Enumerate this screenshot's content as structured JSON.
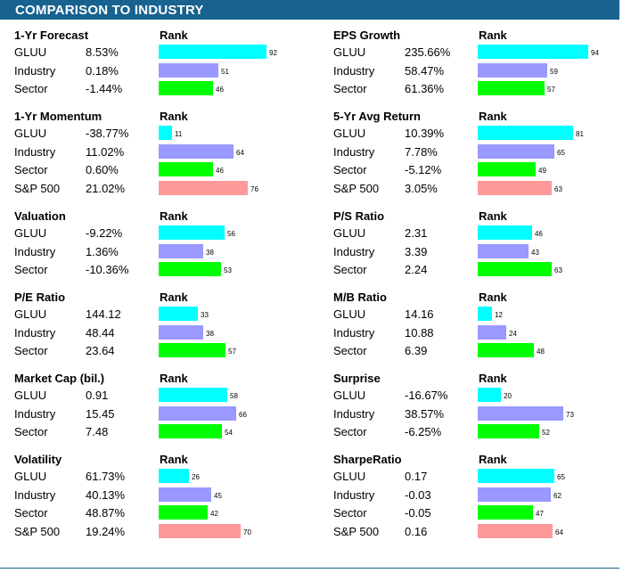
{
  "header": {
    "title": "COMPARISON TO INDUSTRY"
  },
  "rank_label": "Rank",
  "colors": {
    "stock": "#00ffff",
    "industry": "#9999ff",
    "sector": "#00ff00",
    "sp500": "#ff9999",
    "header": "#17628f"
  },
  "sections": [
    {
      "title": "1-Yr Forecast",
      "rows": [
        {
          "label": "GLUU",
          "value": "8.53%",
          "rank": 92,
          "kind": "stock"
        },
        {
          "label": "Industry",
          "value": "0.18%",
          "rank": 51,
          "kind": "industry"
        },
        {
          "label": "Sector",
          "value": "-1.44%",
          "rank": 46,
          "kind": "sector"
        }
      ]
    },
    {
      "title": "EPS Growth",
      "rows": [
        {
          "label": "GLUU",
          "value": "235.66%",
          "rank": 94,
          "kind": "stock"
        },
        {
          "label": "Industry",
          "value": "58.47%",
          "rank": 59,
          "kind": "industry"
        },
        {
          "label": "Sector",
          "value": "61.36%",
          "rank": 57,
          "kind": "sector"
        }
      ]
    },
    {
      "title": "1-Yr Momentum",
      "rows": [
        {
          "label": "GLUU",
          "value": "-38.77%",
          "rank": 11,
          "kind": "stock"
        },
        {
          "label": "Industry",
          "value": "11.02%",
          "rank": 64,
          "kind": "industry"
        },
        {
          "label": "Sector",
          "value": "0.60%",
          "rank": 46,
          "kind": "sector"
        },
        {
          "label": "S&P 500",
          "value": "21.02%",
          "rank": 76,
          "kind": "sp500"
        }
      ]
    },
    {
      "title": "5-Yr Avg Return",
      "rows": [
        {
          "label": "GLUU",
          "value": "10.39%",
          "rank": 81,
          "kind": "stock"
        },
        {
          "label": "Industry",
          "value": "7.78%",
          "rank": 65,
          "kind": "industry"
        },
        {
          "label": "Sector",
          "value": "-5.12%",
          "rank": 49,
          "kind": "sector"
        },
        {
          "label": "S&P 500",
          "value": "3.05%",
          "rank": 63,
          "kind": "sp500"
        }
      ]
    },
    {
      "title": "Valuation",
      "rows": [
        {
          "label": "GLUU",
          "value": "-9.22%",
          "rank": 56,
          "kind": "stock"
        },
        {
          "label": "Industry",
          "value": "1.36%",
          "rank": 38,
          "kind": "industry"
        },
        {
          "label": "Sector",
          "value": "-10.36%",
          "rank": 53,
          "kind": "sector"
        }
      ]
    },
    {
      "title": "P/S Ratio",
      "rows": [
        {
          "label": "GLUU",
          "value": "2.31",
          "rank": 46,
          "kind": "stock"
        },
        {
          "label": "Industry",
          "value": "3.39",
          "rank": 43,
          "kind": "industry"
        },
        {
          "label": "Sector",
          "value": "2.24",
          "rank": 63,
          "kind": "sector"
        }
      ]
    },
    {
      "title": "P/E Ratio",
      "rows": [
        {
          "label": "GLUU",
          "value": "144.12",
          "rank": 33,
          "kind": "stock"
        },
        {
          "label": "Industry",
          "value": "48.44",
          "rank": 38,
          "kind": "industry"
        },
        {
          "label": "Sector",
          "value": "23.64",
          "rank": 57,
          "kind": "sector"
        }
      ]
    },
    {
      "title": "M/B Ratio",
      "rows": [
        {
          "label": "GLUU",
          "value": "14.16",
          "rank": 12,
          "kind": "stock"
        },
        {
          "label": "Industry",
          "value": "10.88",
          "rank": 24,
          "kind": "industry"
        },
        {
          "label": "Sector",
          "value": "6.39",
          "rank": 48,
          "kind": "sector"
        }
      ]
    },
    {
      "title": "Market Cap (bil.)",
      "rows": [
        {
          "label": "GLUU",
          "value": "0.91",
          "rank": 58,
          "kind": "stock"
        },
        {
          "label": "Industry",
          "value": "15.45",
          "rank": 66,
          "kind": "industry"
        },
        {
          "label": "Sector",
          "value": "7.48",
          "rank": 54,
          "kind": "sector"
        }
      ]
    },
    {
      "title": "Surprise",
      "rows": [
        {
          "label": "GLUU",
          "value": "-16.67%",
          "rank": 20,
          "kind": "stock"
        },
        {
          "label": "Industry",
          "value": "38.57%",
          "rank": 73,
          "kind": "industry"
        },
        {
          "label": "Sector",
          "value": "-6.25%",
          "rank": 52,
          "kind": "sector"
        }
      ]
    },
    {
      "title": "Volatility",
      "rows": [
        {
          "label": "GLUU",
          "value": "61.73%",
          "rank": 26,
          "kind": "stock"
        },
        {
          "label": "Industry",
          "value": "40.13%",
          "rank": 45,
          "kind": "industry"
        },
        {
          "label": "Sector",
          "value": "48.87%",
          "rank": 42,
          "kind": "sector"
        },
        {
          "label": "S&P 500",
          "value": "19.24%",
          "rank": 70,
          "kind": "sp500"
        }
      ]
    },
    {
      "title": "SharpeRatio",
      "rows": [
        {
          "label": "GLUU",
          "value": "0.17",
          "rank": 65,
          "kind": "stock"
        },
        {
          "label": "Industry",
          "value": "-0.03",
          "rank": 62,
          "kind": "industry"
        },
        {
          "label": "Sector",
          "value": "-0.05",
          "rank": 47,
          "kind": "sector"
        },
        {
          "label": "S&P 500",
          "value": "0.16",
          "rank": 64,
          "kind": "sp500"
        }
      ]
    }
  ]
}
